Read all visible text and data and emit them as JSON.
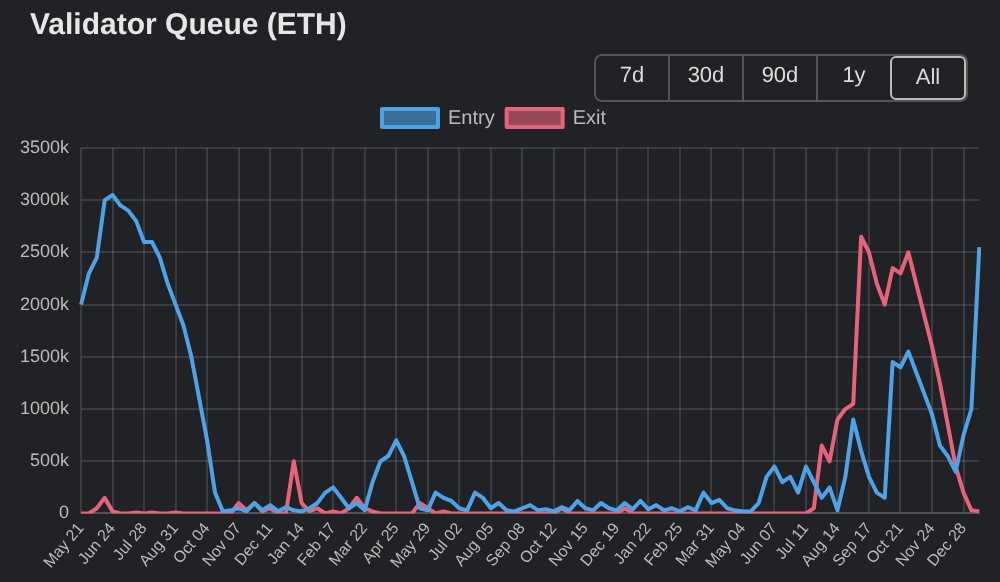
{
  "chart_data": {
    "type": "line",
    "title": "Validator Queue (ETH)",
    "annotations": [
      "7d",
      "30d",
      "90d",
      "1y",
      "All"
    ],
    "categories": [
      "May 21",
      null,
      null,
      null,
      "Jun 24",
      null,
      null,
      null,
      "Jul 28",
      null,
      null,
      null,
      "Aug 31",
      null,
      null,
      null,
      "Oct 04",
      null,
      null,
      null,
      "Nov 07",
      null,
      null,
      null,
      "Dec 11",
      null,
      null,
      null,
      "Jan 14",
      null,
      null,
      null,
      "Feb 17",
      null,
      null,
      null,
      "Mar 22",
      null,
      null,
      null,
      "Apr 25",
      null,
      null,
      null,
      "May 29",
      null,
      null,
      null,
      "Jul 02",
      null,
      null,
      null,
      "Aug 05",
      null,
      null,
      null,
      "Sep 08",
      null,
      null,
      null,
      "Oct 12",
      null,
      null,
      null,
      "Nov 15",
      null,
      null,
      null,
      "Dec 19",
      null,
      null,
      null,
      "Jan 22",
      null,
      null,
      null,
      "Feb 25",
      null,
      null,
      null,
      "Mar 31",
      null,
      null,
      null,
      "May 04",
      null,
      null,
      null,
      "Jun 07",
      null,
      null,
      null,
      "Jul 11",
      null,
      null,
      null,
      "Aug 14",
      null,
      null,
      null,
      "Sep 17",
      null,
      null,
      null,
      "Oct 21",
      null,
      null,
      null,
      "Nov 24",
      null,
      null,
      null,
      "Dec 28",
      null,
      null
    ],
    "series": [
      {
        "name": "Entry",
        "color": "#4da3e8",
        "values": [
          2000000,
          2300000,
          2450000,
          3000000,
          3050000,
          2950000,
          2900000,
          2800000,
          2600000,
          2600000,
          2450000,
          2200000,
          2000000,
          1800000,
          1500000,
          1100000,
          700000,
          200000,
          20000,
          30000,
          50000,
          20000,
          100000,
          30000,
          80000,
          20000,
          60000,
          30000,
          20000,
          50000,
          100000,
          200000,
          250000,
          150000,
          50000,
          100000,
          30000,
          300000,
          500000,
          550000,
          700000,
          550000,
          300000,
          50000,
          30000,
          200000,
          150000,
          120000,
          50000,
          30000,
          200000,
          150000,
          50000,
          100000,
          30000,
          20000,
          50000,
          80000,
          30000,
          40000,
          20000,
          60000,
          30000,
          120000,
          50000,
          30000,
          100000,
          50000,
          30000,
          100000,
          40000,
          120000,
          40000,
          80000,
          30000,
          50000,
          20000,
          60000,
          30000,
          200000,
          100000,
          130000,
          50000,
          30000,
          20000,
          20000,
          100000,
          350000,
          450000,
          300000,
          350000,
          200000,
          450000,
          300000,
          150000,
          250000,
          30000,
          350000,
          900000,
          600000,
          350000,
          200000,
          150000,
          1450000,
          1400000,
          1550000,
          1350000,
          1150000,
          950000,
          650000,
          550000,
          400000,
          750000,
          1000000,
          2550000
        ]
      },
      {
        "name": "Exit",
        "color": "#e8637a",
        "values": [
          0,
          0,
          50000,
          150000,
          20000,
          0,
          0,
          10000,
          0,
          10000,
          0,
          0,
          10000,
          0,
          0,
          0,
          0,
          0,
          0,
          0,
          100000,
          30000,
          100000,
          20000,
          50000,
          0,
          0,
          500000,
          100000,
          20000,
          50000,
          0,
          20000,
          0,
          50000,
          150000,
          50000,
          20000,
          0,
          0,
          0,
          0,
          0,
          100000,
          50000,
          0,
          20000,
          0,
          0,
          0,
          0,
          0,
          0,
          0,
          0,
          0,
          0,
          0,
          0,
          0,
          0,
          50000,
          0,
          0,
          0,
          0,
          0,
          0,
          0,
          50000,
          0,
          0,
          0,
          0,
          0,
          0,
          0,
          0,
          0,
          0,
          0,
          0,
          0,
          0,
          0,
          0,
          0,
          0,
          0,
          0,
          0,
          0,
          0,
          50000,
          650000,
          500000,
          900000,
          1000000,
          1050000,
          2650000,
          2500000,
          2200000,
          2000000,
          2350000,
          2300000,
          2500000,
          2200000,
          1900000,
          1600000,
          1250000,
          850000,
          450000,
          200000,
          30000,
          20000
        ]
      }
    ],
    "ylim": [
      0,
      3500000
    ],
    "yticks": [
      {
        "value": 0,
        "label": "0"
      },
      {
        "value": 500000,
        "label": "500k"
      },
      {
        "value": 1000000,
        "label": "1000k"
      },
      {
        "value": 1500000,
        "label": "1500k"
      },
      {
        "value": 2000000,
        "label": "2000k"
      },
      {
        "value": 2500000,
        "label": "2500k"
      },
      {
        "value": 3000000,
        "label": "3000k"
      },
      {
        "value": 3500000,
        "label": "3500k"
      }
    ],
    "grid": true,
    "legend": "top",
    "marker": "none",
    "line_style": "solid"
  }
}
